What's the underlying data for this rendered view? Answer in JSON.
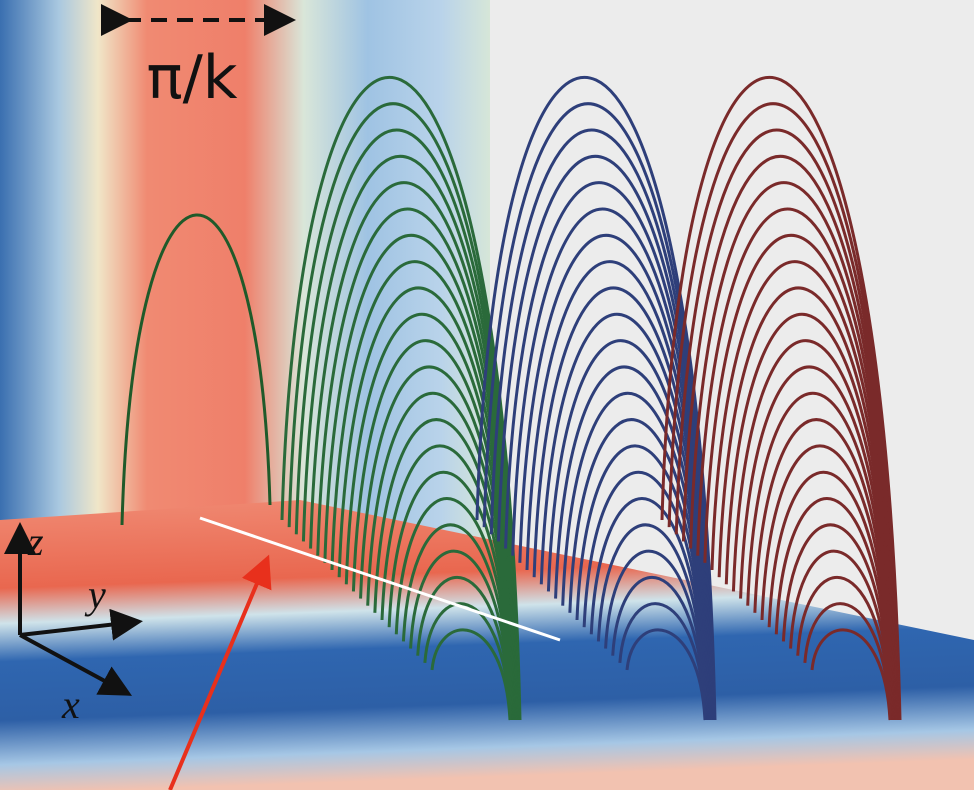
{
  "labels": {
    "wavelength": "π/k",
    "axes": {
      "z": "z",
      "y": "y",
      "x": "x"
    }
  }
}
